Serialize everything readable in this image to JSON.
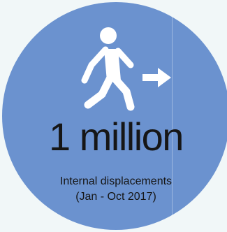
{
  "stat": {
    "value": "1 million",
    "label_line1": "Internal displacements",
    "label_line2": "(Jan - Oct 2017)"
  },
  "icons": {
    "figure": "walking-person-icon",
    "arrow": "right-arrow-icon"
  },
  "colors": {
    "background": "#f1f7f8",
    "circle": "#6b92cf",
    "text": "#161616",
    "icon": "#ffffff"
  }
}
